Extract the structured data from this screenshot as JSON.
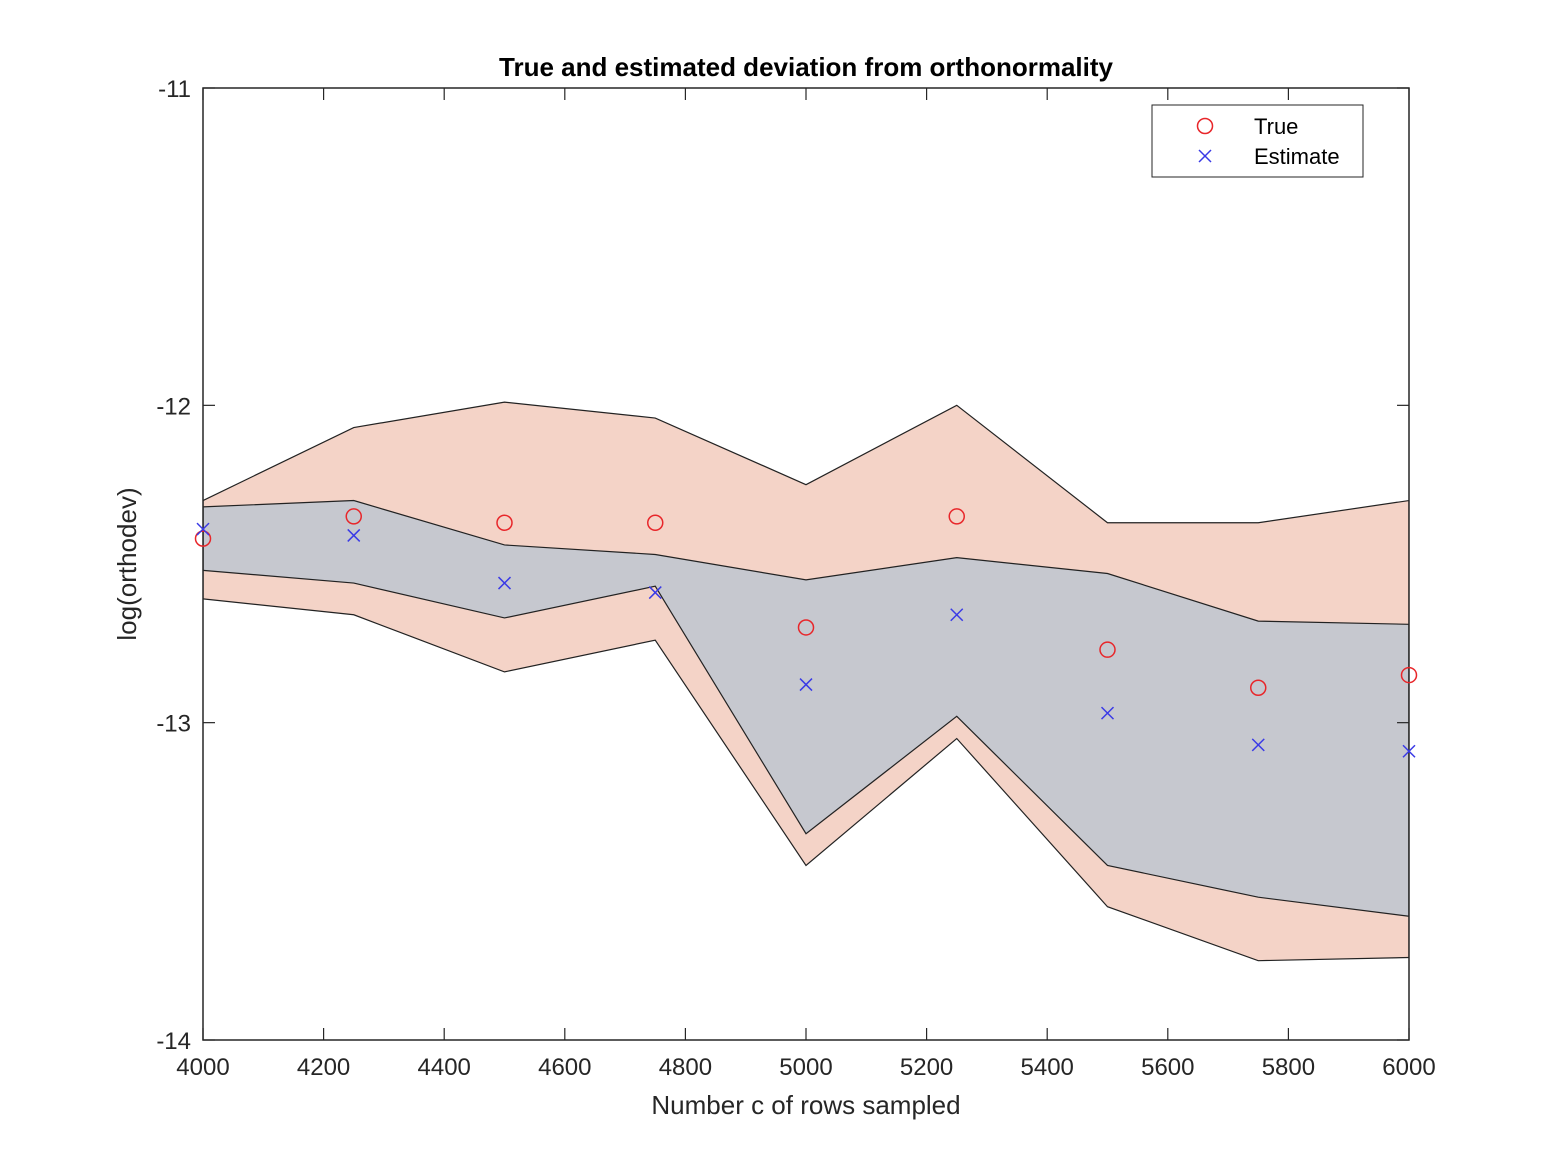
{
  "chart_data": {
    "type": "scatter",
    "title": "True and estimated deviation from orthonormality",
    "xlabel": "Number c of rows sampled",
    "ylabel": "log(orthodev)",
    "xlim": [
      4000,
      6000
    ],
    "ylim": [
      -14,
      -11
    ],
    "xticks": [
      4000,
      4200,
      4400,
      4600,
      4800,
      5000,
      5200,
      5400,
      5600,
      5800,
      6000
    ],
    "yticks": [
      -14,
      -13,
      -12,
      -11
    ],
    "x": [
      4000,
      4250,
      4500,
      4750,
      5000,
      5250,
      5500,
      5750,
      6000
    ],
    "series": [
      {
        "name": "True",
        "marker": "circle",
        "color": "#e8262a",
        "values": [
          -12.42,
          -12.35,
          -12.37,
          -12.37,
          -12.7,
          -12.35,
          -12.77,
          -12.89,
          -12.85
        ]
      },
      {
        "name": "Estimate",
        "marker": "x",
        "color": "#3a3ae6",
        "values": [
          -12.39,
          -12.41,
          -12.56,
          -12.59,
          -12.88,
          -12.66,
          -12.97,
          -13.07,
          -13.09
        ]
      }
    ],
    "bands": [
      {
        "name": "True range",
        "color": "#f4d3c7",
        "upper": [
          -12.3,
          -12.07,
          -11.99,
          -12.04,
          -12.25,
          -12.0,
          -12.37,
          -12.37,
          -12.3
        ],
        "lower": [
          -12.61,
          -12.66,
          -12.84,
          -12.74,
          -13.45,
          -13.05,
          -13.58,
          -13.75,
          -13.74
        ]
      },
      {
        "name": "Estimate range",
        "color": "#cbe3f0",
        "upper": [
          -12.32,
          -12.3,
          -12.44,
          -12.47,
          -12.55,
          -12.48,
          -12.53,
          -12.68,
          -12.69
        ],
        "lower": [
          -12.52,
          -12.56,
          -12.67,
          -12.57,
          -13.35,
          -12.98,
          -13.45,
          -13.55,
          -13.61
        ]
      }
    ],
    "overlap_color": "#c6c8cf",
    "legend": {
      "position": "top-right",
      "entries": [
        "True",
        "Estimate"
      ]
    },
    "grid": false
  }
}
